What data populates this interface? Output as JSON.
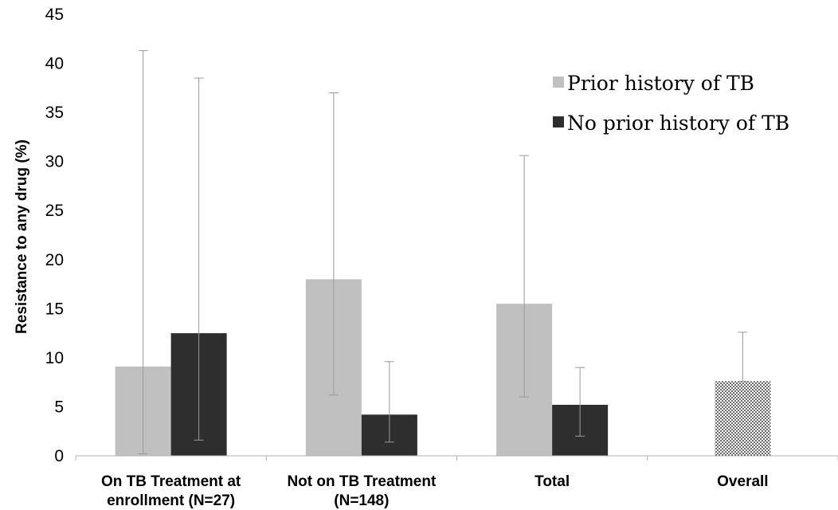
{
  "chart_data": {
    "type": "bar",
    "ylabel": "Resistance to any drug (%)",
    "xlabel": "",
    "ylim": [
      0,
      45
    ],
    "yticks": [
      0,
      5,
      10,
      15,
      20,
      25,
      30,
      35,
      40,
      45
    ],
    "grid": false,
    "legend_position": "top-right",
    "categories": [
      [
        "On TB Treatment at",
        "enrollment (N=27)"
      ],
      [
        "Not on TB Treatment",
        "(N=148)"
      ],
      [
        "Total"
      ],
      [
        "Overall"
      ]
    ],
    "series": [
      {
        "name": "Prior history of TB",
        "color": "#c0c0c0",
        "values": [
          9.1,
          18.0,
          15.5,
          null
        ],
        "error_low": [
          0.2,
          6.2,
          6.0,
          null
        ],
        "error_high": [
          41.3,
          37.0,
          30.6,
          null
        ]
      },
      {
        "name": "No prior history of TB",
        "color": "#2e2e2e",
        "values": [
          12.5,
          4.2,
          5.2,
          null
        ],
        "error_low": [
          1.6,
          1.4,
          2.0,
          null
        ],
        "error_high": [
          38.5,
          9.6,
          9.0,
          null
        ]
      },
      {
        "name": "",
        "pattern": "dotted",
        "color": "#ffffff",
        "values": [
          null,
          null,
          null,
          7.6
        ],
        "error_low": [
          null,
          null,
          null,
          7.6
        ],
        "error_high": [
          null,
          null,
          null,
          12.6
        ]
      }
    ]
  }
}
